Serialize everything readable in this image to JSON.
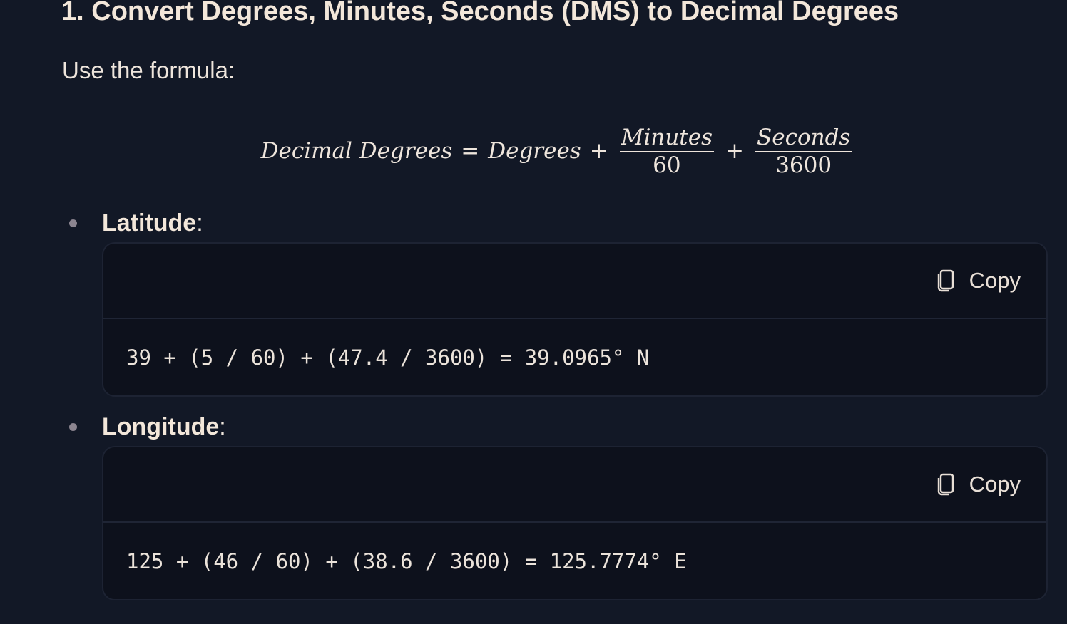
{
  "heading": "1. Convert Degrees, Minutes, Seconds (DMS) to Decimal Degrees",
  "intro": "Use the formula:",
  "formula": {
    "lhs": "Decimal Degrees",
    "equals": "=",
    "term1": "Degrees",
    "plus": "+",
    "frac1_num": "Minutes",
    "frac1_den": "60",
    "frac2_num": "Seconds",
    "frac2_den": "3600"
  },
  "items": [
    {
      "label": "Latitude",
      "suffix": ":",
      "copy_label": "Copy",
      "copy_icon": "copy-icon",
      "code": "39 + (5 / 60) + (47.4 / 3600) = 39.0965° N"
    },
    {
      "label": "Longitude",
      "suffix": ":",
      "copy_label": "Copy",
      "copy_icon": "copy-icon",
      "code": "125 + (46 / 60) + (38.6 / 3600) = 125.7774° E"
    }
  ]
}
